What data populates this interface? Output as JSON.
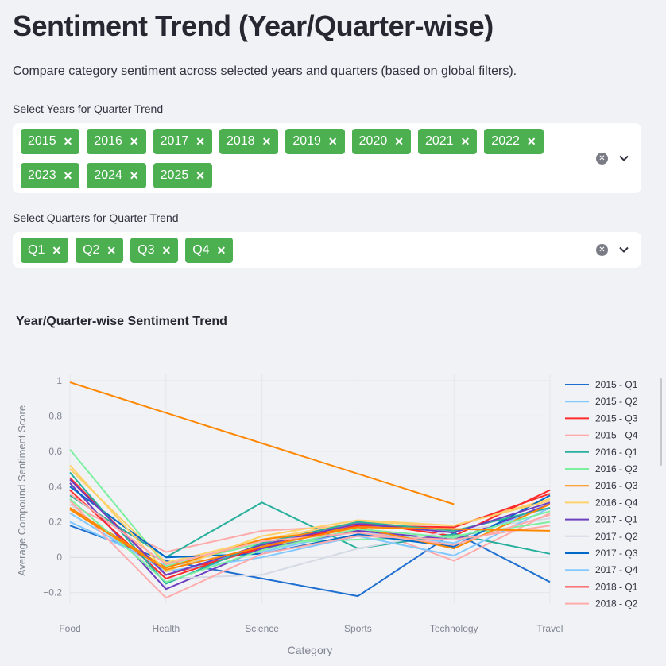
{
  "header": {
    "title": "Sentiment Trend (Year/Quarter-wise)",
    "caption": "Compare category sentiment across selected years and quarters (based on global filters)."
  },
  "years_select": {
    "label": "Select Years for Quarter Trend",
    "chips": [
      "2015",
      "2016",
      "2017",
      "2018",
      "2019",
      "2020",
      "2021",
      "2022",
      "2023",
      "2024",
      "2025"
    ],
    "remove_glyph": "✕",
    "clear_glyph": "✕"
  },
  "quarters_select": {
    "label": "Select Quarters for Quarter Trend",
    "chips": [
      "Q1",
      "Q2",
      "Q3",
      "Q4"
    ],
    "remove_glyph": "✕",
    "clear_glyph": "✕"
  },
  "colors": {
    "chip_bg": "#4caf50",
    "grid": "#e3e6ec",
    "axis_text": "#7f8591"
  },
  "chart_data": {
    "type": "line",
    "title": "Year/Quarter-wise Sentiment Trend",
    "xlabel": "Category",
    "ylabel": "Average Compound Sentiment Score",
    "categories": [
      "Food",
      "Health",
      "Science",
      "Sports",
      "Technology",
      "Travel"
    ],
    "ylim": [
      -0.26,
      1.04
    ],
    "yticks": [
      -0.2,
      0,
      0.2,
      0.4,
      0.6,
      0.8,
      1
    ],
    "ytick_labels": [
      "−0.2",
      "0",
      "0.2",
      "0.4",
      "0.6",
      "0.8",
      "1"
    ],
    "grid": true,
    "legend": "right",
    "series": [
      {
        "name": "2015 - Q1",
        "color": "#1f6fd1",
        "values": [
          0.18,
          -0.02,
          -0.12,
          -0.22,
          0.14,
          -0.14
        ]
      },
      {
        "name": "2015 - Q2",
        "color": "#83c9ff",
        "values": [
          0.2,
          -0.05,
          0.03,
          0.15,
          0.08,
          0.3
        ]
      },
      {
        "name": "2015 - Q3",
        "color": "#ff2b2b",
        "values": [
          0.45,
          -0.1,
          0.05,
          0.2,
          0.12,
          0.38
        ]
      },
      {
        "name": "2015 - Q4",
        "color": "#ffabab",
        "values": [
          0.3,
          0.03,
          0.15,
          0.18,
          -0.02,
          0.25
        ]
      },
      {
        "name": "2016 - Q1",
        "color": "#29b09d",
        "values": [
          0.35,
          0.0,
          0.31,
          0.05,
          0.13,
          0.02
        ]
      },
      {
        "name": "2016 - Q2",
        "color": "#7defa1",
        "values": [
          0.61,
          -0.05,
          0.08,
          0.1,
          0.12,
          0.2
        ]
      },
      {
        "name": "2016 - Q3",
        "color": "#ff8700",
        "values": [
          0.99,
          null,
          null,
          null,
          0.3,
          null
        ]
      },
      {
        "name": "2016 - Q4",
        "color": "#ffd16a",
        "values": [
          0.5,
          -0.03,
          0.1,
          0.2,
          0.18,
          0.33
        ]
      },
      {
        "name": "2017 - Q1",
        "color": "#6d3fc0",
        "values": [
          0.42,
          -0.18,
          0.05,
          0.15,
          0.1,
          0.3
        ]
      },
      {
        "name": "2017 - Q2",
        "color": "#d5dae5",
        "values": [
          0.3,
          -0.12,
          -0.1,
          0.05,
          0.15,
          0.22
        ]
      },
      {
        "name": "2017 - Q3",
        "color": "#0068c9",
        "values": [
          0.4,
          0.0,
          0.02,
          0.13,
          0.06,
          0.35
        ]
      },
      {
        "name": "2017 - Q4",
        "color": "#83c9ff",
        "values": [
          0.25,
          -0.08,
          0.0,
          0.12,
          0.01,
          0.28
        ]
      },
      {
        "name": "2018 - Q1",
        "color": "#ff2b2b",
        "values": [
          0.38,
          -0.12,
          0.06,
          0.18,
          0.17,
          0.36
        ]
      },
      {
        "name": "2018 - Q2",
        "color": "#ffabab",
        "values": [
          0.32,
          -0.23,
          0.02,
          0.12,
          0.1,
          0.18
        ]
      },
      {
        "values": [
          0.48,
          -0.15,
          0.08,
          0.2,
          0.15,
          0.28
        ],
        "color": "#29b09d"
      },
      {
        "values": [
          0.28,
          -0.06,
          0.1,
          0.17,
          0.05,
          0.3
        ],
        "color": "#ff8700"
      },
      {
        "values": [
          0.52,
          -0.08,
          0.12,
          0.21,
          0.18,
          0.32
        ],
        "color": "#ffd16a"
      },
      {
        "values": [
          0.33,
          -0.14,
          0.04,
          0.16,
          0.11,
          0.26
        ],
        "color": "#7defa1"
      },
      {
        "values": [
          0.44,
          -0.1,
          0.07,
          0.19,
          0.14,
          0.31
        ],
        "color": "#6d3fc0"
      },
      {
        "values": [
          0.36,
          -0.04,
          0.09,
          0.14,
          0.07,
          0.24
        ],
        "color": "#ffabab"
      },
      {
        "values": [
          0.27,
          -0.07,
          0.06,
          0.17,
          0.16,
          0.15
        ],
        "color": "#ff8700"
      }
    ]
  }
}
